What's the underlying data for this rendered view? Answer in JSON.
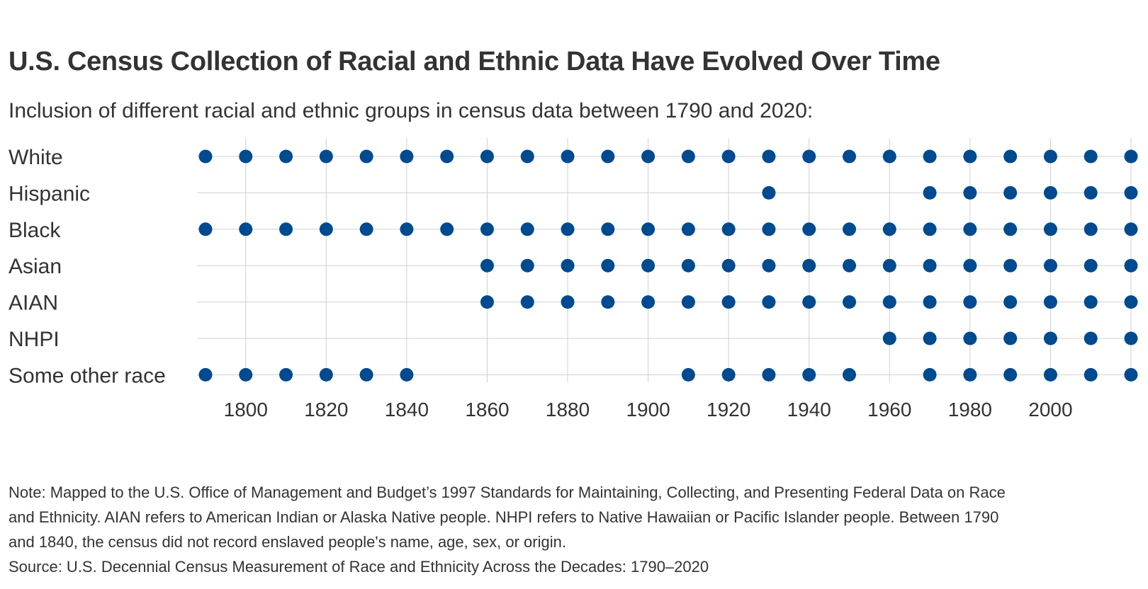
{
  "header": {
    "title": "U.S. Census Collection of Racial and Ethnic Data Have Evolved Over Time",
    "subtitle": "Inclusion of different racial and ethnic groups in census data between 1790 and 2020:"
  },
  "chart_data": {
    "type": "scatter",
    "title": "U.S. Census Collection of Racial and Ethnic Data Have Evolved Over Time",
    "subtitle": "Inclusion of different racial and ethnic groups in census data between 1790 and 2020:",
    "xlabel": "",
    "ylabel": "",
    "xlim": [
      1790,
      2020
    ],
    "x_ticks": [
      1800,
      1820,
      1840,
      1860,
      1880,
      1900,
      1920,
      1940,
      1960,
      1980,
      2000
    ],
    "x_gridlines": [
      1800,
      1820,
      1840,
      1860,
      1880,
      1900,
      1920,
      1940,
      1960,
      1980,
      2000,
      2020
    ],
    "grid": true,
    "dot_color": "#004a8f",
    "grid_color": "#d0d0d0",
    "series": [
      {
        "name": "White",
        "years": [
          1790,
          1800,
          1810,
          1820,
          1830,
          1840,
          1850,
          1860,
          1870,
          1880,
          1890,
          1900,
          1910,
          1920,
          1930,
          1940,
          1950,
          1960,
          1970,
          1980,
          1990,
          2000,
          2010,
          2020
        ]
      },
      {
        "name": "Hispanic",
        "years": [
          1930,
          1970,
          1980,
          1990,
          2000,
          2010,
          2020
        ]
      },
      {
        "name": "Black",
        "years": [
          1790,
          1800,
          1810,
          1820,
          1830,
          1840,
          1850,
          1860,
          1870,
          1880,
          1890,
          1900,
          1910,
          1920,
          1930,
          1940,
          1950,
          1960,
          1970,
          1980,
          1990,
          2000,
          2010,
          2020
        ]
      },
      {
        "name": "Asian",
        "years": [
          1860,
          1870,
          1880,
          1890,
          1900,
          1910,
          1920,
          1930,
          1940,
          1950,
          1960,
          1970,
          1980,
          1990,
          2000,
          2010,
          2020
        ]
      },
      {
        "name": "AIAN",
        "years": [
          1860,
          1870,
          1880,
          1890,
          1900,
          1910,
          1920,
          1930,
          1940,
          1950,
          1960,
          1970,
          1980,
          1990,
          2000,
          2010,
          2020
        ]
      },
      {
        "name": "NHPI",
        "years": [
          1960,
          1970,
          1980,
          1990,
          2000,
          2010,
          2020
        ]
      },
      {
        "name": "Some other race",
        "years": [
          1790,
          1800,
          1810,
          1820,
          1830,
          1840,
          1910,
          1920,
          1930,
          1940,
          1950,
          1970,
          1980,
          1990,
          2000,
          2010,
          2020
        ]
      }
    ]
  },
  "footer": {
    "note": "Note: Mapped to the U.S. Office of Management and Budget’s 1997 Standards for Maintaining, Collecting, and Presenting Federal Data on Race and Ethnicity. AIAN refers to American Indian or Alaska Native people. NHPI refers to Native Hawaiian or Pacific Islander people. Between 1790 and 1840, the census did not record enslaved people's name, age, sex, or origin.",
    "source": "Source: U.S. Decennial Census Measurement of Race and Ethnicity Across the Decades: 1790–2020"
  }
}
